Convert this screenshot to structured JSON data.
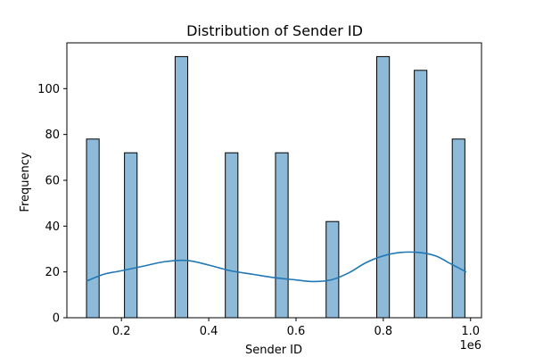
{
  "chart_data": {
    "type": "bar",
    "title": "Distribution of Sender ID",
    "xlabel": "Sender ID",
    "ylabel": "Frequency",
    "x_offset_text": "1e6",
    "xlim": [
      0.075,
      1.025
    ],
    "ylim": [
      0,
      120
    ],
    "x_ticks": [
      0.2,
      0.4,
      0.6,
      0.8,
      1.0
    ],
    "x_tick_labels": [
      "0.2",
      "0.4",
      "0.6",
      "0.8",
      "1.0"
    ],
    "y_ticks": [
      0,
      20,
      40,
      60,
      80,
      100
    ],
    "y_tick_labels": [
      "0",
      "20",
      "40",
      "60",
      "80",
      "100"
    ],
    "bin_width": 0.0289,
    "bars": [
      {
        "x": 0.12,
        "value": 78
      },
      {
        "x": 0.207,
        "value": 72
      },
      {
        "x": 0.323,
        "value": 114
      },
      {
        "x": 0.438,
        "value": 72
      },
      {
        "x": 0.553,
        "value": 72
      },
      {
        "x": 0.669,
        "value": 42
      },
      {
        "x": 0.785,
        "value": 114
      },
      {
        "x": 0.871,
        "value": 108
      },
      {
        "x": 0.958,
        "value": 78
      }
    ],
    "kde": {
      "x": [
        0.12,
        0.16,
        0.2,
        0.25,
        0.3,
        0.35,
        0.4,
        0.45,
        0.5,
        0.55,
        0.6,
        0.64,
        0.68,
        0.72,
        0.76,
        0.8,
        0.84,
        0.88,
        0.92,
        0.95,
        0.99
      ],
      "y": [
        16,
        19,
        20.5,
        22.5,
        24.5,
        25,
        23,
        20.5,
        19,
        17.5,
        16.5,
        15.8,
        16.5,
        19.5,
        24,
        27,
        28.5,
        28.5,
        27,
        24,
        20
      ]
    },
    "grid": false,
    "legend": "none",
    "colors": {
      "bar_fill": "#8ebad9",
      "bar_edge": "#000000",
      "kde_line": "#1f77b4",
      "axes": "#000000"
    }
  }
}
